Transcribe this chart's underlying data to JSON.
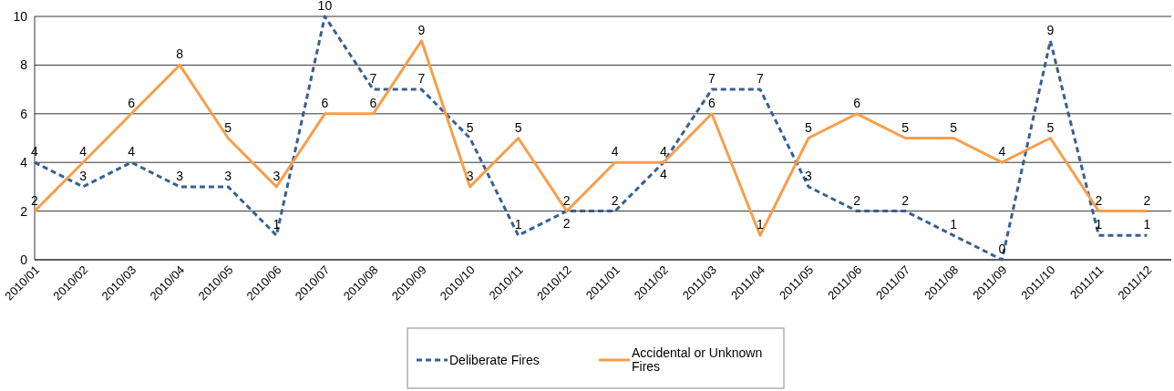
{
  "chart_data": {
    "type": "line",
    "categories": [
      "2010/01",
      "2010/02",
      "2010/03",
      "2010/04",
      "2010/05",
      "2010/06",
      "2010/07",
      "2010/08",
      "2010/09",
      "2010/10",
      "2010/11",
      "2010/12",
      "2011/01",
      "2011/02",
      "2011/03",
      "2011/04",
      "2011/05",
      "2011/06",
      "2011/07",
      "2011/08",
      "2011/09",
      "2011/10",
      "2011/11",
      "2011/12"
    ],
    "series": [
      {
        "name": "Deliberate Fires",
        "color": "#376092",
        "line_style": "dashed",
        "values": [
          4,
          3,
          4,
          3,
          3,
          1,
          10,
          7,
          7,
          5,
          1,
          2,
          2,
          4,
          7,
          7,
          3,
          2,
          2,
          1,
          0,
          9,
          1,
          1
        ]
      },
      {
        "name": "Accidental or Unknown Fires",
        "color": "#f79e4a",
        "line_style": "solid",
        "values": [
          2,
          4,
          6,
          8,
          5,
          3,
          6,
          6,
          9,
          3,
          5,
          2,
          4,
          4,
          6,
          1,
          5,
          6,
          5,
          5,
          4,
          5,
          2,
          2
        ]
      }
    ],
    "ylim": [
      0,
      10
    ],
    "yticks": [
      0,
      2,
      4,
      6,
      8,
      10
    ],
    "grid": "y",
    "legend": "bottom",
    "data_labels": true,
    "marker": "none"
  }
}
